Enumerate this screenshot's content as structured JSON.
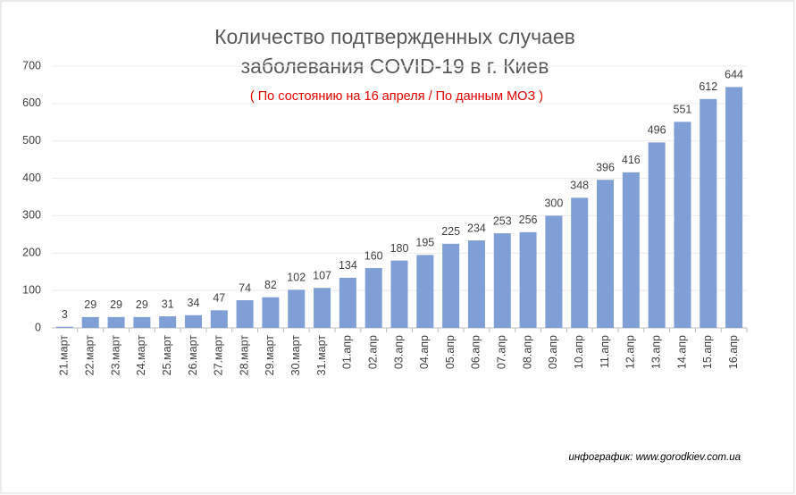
{
  "chart_data": {
    "type": "bar",
    "title": [
      "Количество подтвержденных случаев",
      "заболевания COVID-19 в г. Киев"
    ],
    "subtitle": "( По состоянию на 16 апреля / По данным МОЗ )",
    "source": "инфографик: www.gorodkiev.com.ua",
    "categories": [
      "21.март",
      "22.март",
      "23.март",
      "24.март",
      "25.март",
      "26.март",
      "27.март",
      "28.март",
      "29.март",
      "30.март",
      "31.март",
      "01.апр",
      "02.апр",
      "03.апр",
      "04.апр",
      "05.апр",
      "06.апр",
      "07.апр",
      "08.апр",
      "09.апр",
      "10.апр",
      "11.апр",
      "12.апр",
      "13.апр",
      "14.апр",
      "15.апр",
      "16.апр"
    ],
    "values": [
      3,
      29,
      29,
      29,
      31,
      34,
      47,
      74,
      82,
      102,
      107,
      134,
      160,
      180,
      195,
      225,
      234,
      253,
      256,
      300,
      348,
      396,
      416,
      496,
      551,
      612,
      644
    ],
    "color": "#7f9fd6",
    "ylim": [
      0,
      700
    ],
    "yticks": [
      0,
      100,
      200,
      300,
      400,
      500,
      600,
      700
    ],
    "grid": true
  }
}
